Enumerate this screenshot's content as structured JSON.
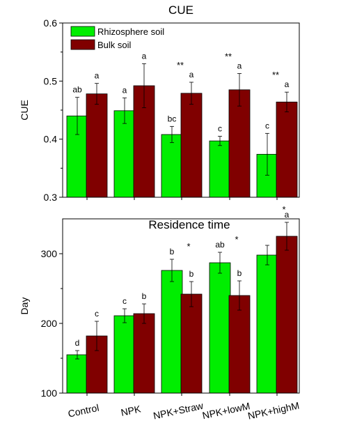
{
  "chart_data": [
    {
      "type": "bar",
      "title": "CUE",
      "ylabel": "CUE",
      "xlabel": "",
      "ylim": [
        0.3,
        0.6
      ],
      "yticks": [
        "0.3",
        "0.4",
        "0.5",
        "0.6"
      ],
      "categories": [
        "Control",
        "NPK",
        "NPK+Straw",
        "NPK+lowM",
        "NPK+highM"
      ],
      "legend_position": "top-left",
      "series": [
        {
          "name": "Rhizosphere soil",
          "color": "#00ee00",
          "values": [
            0.44,
            0.449,
            0.408,
            0.397,
            0.374
          ],
          "errors": [
            0.032,
            0.022,
            0.014,
            0.008,
            0.036
          ],
          "letters": [
            "ab",
            "a",
            "bc",
            "c",
            "c"
          ]
        },
        {
          "name": "Bulk soil",
          "color": "#800000",
          "values": [
            0.478,
            0.492,
            0.479,
            0.485,
            0.464
          ],
          "errors": [
            0.018,
            0.038,
            0.019,
            0.028,
            0.017
          ],
          "letters": [
            "a",
            "a",
            "a",
            "a",
            "a"
          ]
        }
      ],
      "group_marks": [
        "",
        "",
        "**",
        "**",
        "**"
      ]
    },
    {
      "type": "bar",
      "title": "Residence time",
      "ylabel": "Day",
      "xlabel": "",
      "ylim": [
        100,
        350
      ],
      "yticks": [
        "100",
        "200",
        "300"
      ],
      "categories": [
        "Control",
        "NPK",
        "NPK+Straw",
        "NPK+lowM",
        "NPK+highM"
      ],
      "series": [
        {
          "name": "Rhizosphere soil",
          "color": "#00ee00",
          "values": [
            155,
            211,
            276,
            287,
            298
          ],
          "errors": [
            6,
            10,
            16,
            15,
            14
          ],
          "letters": [
            "d",
            "c",
            "b",
            "ab",
            ""
          ]
        },
        {
          "name": "Bulk soil",
          "color": "#800000",
          "values": [
            182,
            214,
            242,
            240,
            325
          ],
          "errors": [
            21,
            14,
            18,
            21,
            20
          ],
          "letters": [
            "c",
            "b",
            "b",
            "b",
            "a"
          ]
        }
      ],
      "group_marks": [
        "",
        "",
        "*",
        "*",
        "*"
      ]
    }
  ]
}
